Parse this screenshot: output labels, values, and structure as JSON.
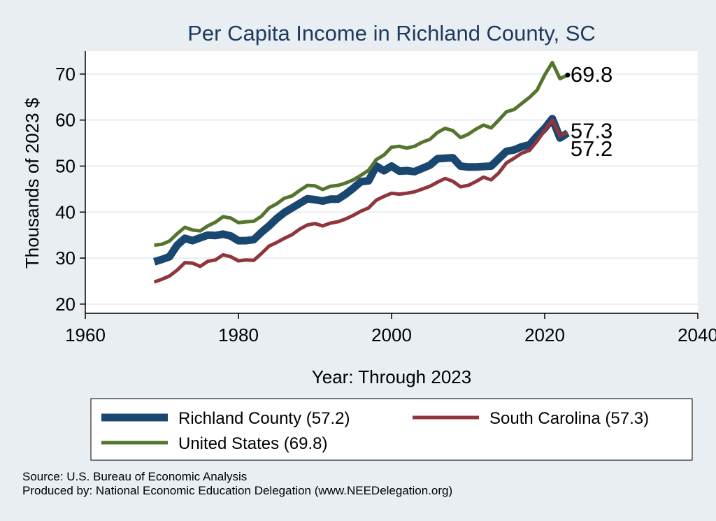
{
  "chart_data": {
    "type": "line",
    "title": "Per Capita Income in Richland County, SC",
    "xlabel": "Year: Through 2023",
    "ylabel": "Thousands of 2023 $",
    "xlim": [
      1960,
      2040
    ],
    "ylim": [
      18,
      75
    ],
    "xticks": [
      "1960",
      "1980",
      "2000",
      "2020",
      "2040"
    ],
    "yticks": [
      "20",
      "30",
      "40",
      "50",
      "60",
      "70"
    ],
    "grid": true,
    "legend_position": "bottom",
    "x": [
      1969,
      1970,
      1971,
      1972,
      1973,
      1974,
      1975,
      1976,
      1977,
      1978,
      1979,
      1980,
      1981,
      1982,
      1983,
      1984,
      1985,
      1986,
      1987,
      1988,
      1989,
      1990,
      1991,
      1992,
      1993,
      1994,
      1995,
      1996,
      1997,
      1998,
      1999,
      2000,
      2001,
      2002,
      2003,
      2004,
      2005,
      2006,
      2007,
      2008,
      2009,
      2010,
      2011,
      2012,
      2013,
      2014,
      2015,
      2016,
      2017,
      2018,
      2019,
      2020,
      2021,
      2022,
      2023
    ],
    "series": [
      {
        "name": "Richland County (57.2)",
        "color": "#1a476f",
        "width": 11,
        "end_label": "57.2",
        "values": [
          29.2,
          29.7,
          30.3,
          32.8,
          34.3,
          33.8,
          34.4,
          35.0,
          34.9,
          35.2,
          34.8,
          33.8,
          33.8,
          34.0,
          35.6,
          37.0,
          38.6,
          39.9,
          40.9,
          41.9,
          42.9,
          42.7,
          42.4,
          42.8,
          42.8,
          43.9,
          45.2,
          46.6,
          46.8,
          50.0,
          49.0,
          50.0,
          48.9,
          49.0,
          48.8,
          49.5,
          50.2,
          51.6,
          51.7,
          51.8,
          50.0,
          49.8,
          49.8,
          49.9,
          50.0,
          51.6,
          53.2,
          53.5,
          54.2,
          54.6,
          56.5,
          58.2,
          60.3,
          56.1,
          57.2
        ]
      },
      {
        "name": "South Carolina (57.3)",
        "color": "#90353b",
        "width": 5,
        "end_label": "57.3",
        "values": [
          24.8,
          25.4,
          26.1,
          27.4,
          29.0,
          28.9,
          28.2,
          29.3,
          29.6,
          30.7,
          30.3,
          29.4,
          29.6,
          29.5,
          31.0,
          32.6,
          33.4,
          34.3,
          35.1,
          36.3,
          37.2,
          37.5,
          37.0,
          37.6,
          37.9,
          38.5,
          39.3,
          40.2,
          40.9,
          42.6,
          43.4,
          44.1,
          43.9,
          44.1,
          44.4,
          45.0,
          45.6,
          46.5,
          47.3,
          46.7,
          45.5,
          45.8,
          46.6,
          47.6,
          47.0,
          48.5,
          50.7,
          51.7,
          52.8,
          53.4,
          55.4,
          57.8,
          60.0,
          56.6,
          57.3
        ]
      },
      {
        "name": "United States (69.8)",
        "color": "#55752f",
        "width": 5,
        "end_label": "69.8",
        "values": [
          32.8,
          33.0,
          33.7,
          35.3,
          36.7,
          36.1,
          35.9,
          37.0,
          37.8,
          39.0,
          38.7,
          37.7,
          37.9,
          38.0,
          39.1,
          40.9,
          41.8,
          43.0,
          43.5,
          44.7,
          45.8,
          45.7,
          44.9,
          45.6,
          45.8,
          46.3,
          47.0,
          48.0,
          49.1,
          51.4,
          52.4,
          54.1,
          54.3,
          53.9,
          54.3,
          55.2,
          55.8,
          57.3,
          58.2,
          57.7,
          56.2,
          56.9,
          58.0,
          58.9,
          58.3,
          60.0,
          61.8,
          62.3,
          63.6,
          64.9,
          66.5,
          69.8,
          72.5,
          69.0,
          69.8
        ]
      }
    ],
    "legend_entries": [
      "Richland County (57.2)",
      "South Carolina (57.3)",
      "United States (69.8)"
    ]
  },
  "footer": {
    "source": "Source: U.S. Bureau of Economic Analysis",
    "produced_by": "Produced by: National Economic Education Delegation (www.NEEDelegation.org)"
  }
}
